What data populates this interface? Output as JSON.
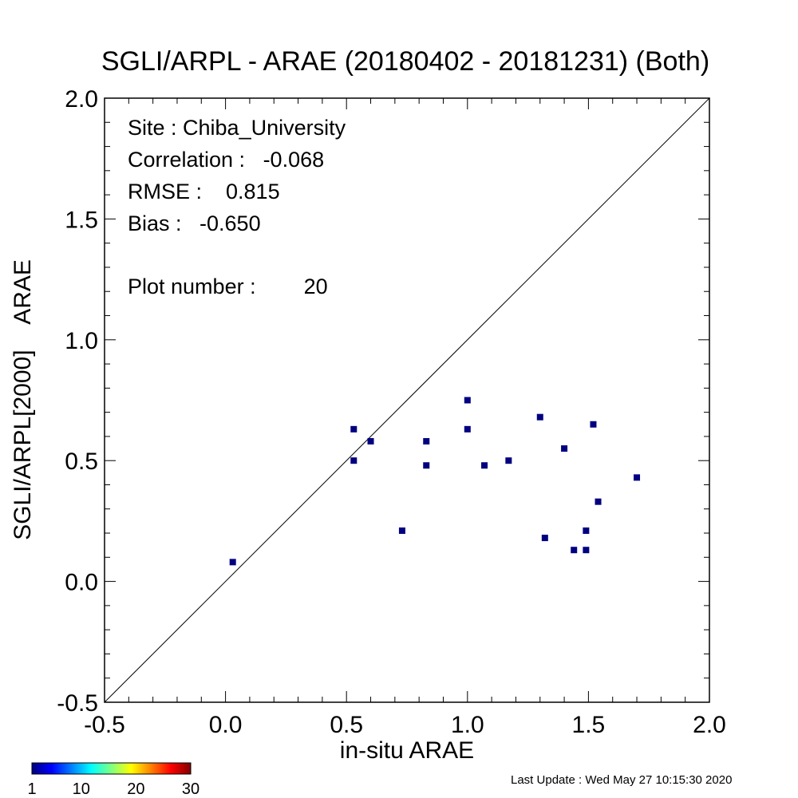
{
  "chart_data": {
    "type": "scatter",
    "title": "SGLI/ARPL - ARAE (20180402 - 20181231) (Both)",
    "xlabel": "in-situ ARAE",
    "ylabel": "SGLI/ARPL[2000]    ARAE",
    "xlim": [
      -0.5,
      2.0
    ],
    "ylim": [
      -0.5,
      2.0
    ],
    "x_ticks": [
      "-0.5",
      "0.0",
      "0.5",
      "1.0",
      "1.5",
      "2.0"
    ],
    "y_ticks": [
      "-0.5",
      "0.0",
      "0.5",
      "1.0",
      "1.5",
      "2.0"
    ],
    "one_to_one_line": true,
    "grid": false,
    "marker_color": "#000080",
    "points": [
      {
        "x": 0.03,
        "y": 0.08
      },
      {
        "x": 0.53,
        "y": 0.63
      },
      {
        "x": 0.53,
        "y": 0.5
      },
      {
        "x": 0.6,
        "y": 0.58
      },
      {
        "x": 0.73,
        "y": 0.21
      },
      {
        "x": 0.83,
        "y": 0.58
      },
      {
        "x": 0.83,
        "y": 0.48
      },
      {
        "x": 1.0,
        "y": 0.75
      },
      {
        "x": 1.0,
        "y": 0.63
      },
      {
        "x": 1.07,
        "y": 0.48
      },
      {
        "x": 1.17,
        "y": 0.5
      },
      {
        "x": 1.3,
        "y": 0.68
      },
      {
        "x": 1.32,
        "y": 0.18
      },
      {
        "x": 1.4,
        "y": 0.55
      },
      {
        "x": 1.44,
        "y": 0.13
      },
      {
        "x": 1.49,
        "y": 0.21
      },
      {
        "x": 1.49,
        "y": 0.13
      },
      {
        "x": 1.52,
        "y": 0.65
      },
      {
        "x": 1.54,
        "y": 0.33
      },
      {
        "x": 1.7,
        "y": 0.43
      }
    ],
    "annotations": {
      "site": "Site : Chiba_University",
      "correlation": "Correlation :   -0.068",
      "rmse": "RMSE :    0.815",
      "bias": "Bias :   -0.650",
      "plot_number": "Plot number :        20"
    },
    "colorbar": {
      "colors": [
        "#000080",
        "#0000ff",
        "#0080ff",
        "#00ffff",
        "#80ff80",
        "#ffff00",
        "#ff8000",
        "#ff0000",
        "#800000"
      ],
      "labels": [
        "1",
        "10",
        "20",
        "30"
      ],
      "min": 1,
      "max": 30
    }
  },
  "footer": {
    "last_update": "Last Update : Wed May 27 10:15:30 2020"
  }
}
